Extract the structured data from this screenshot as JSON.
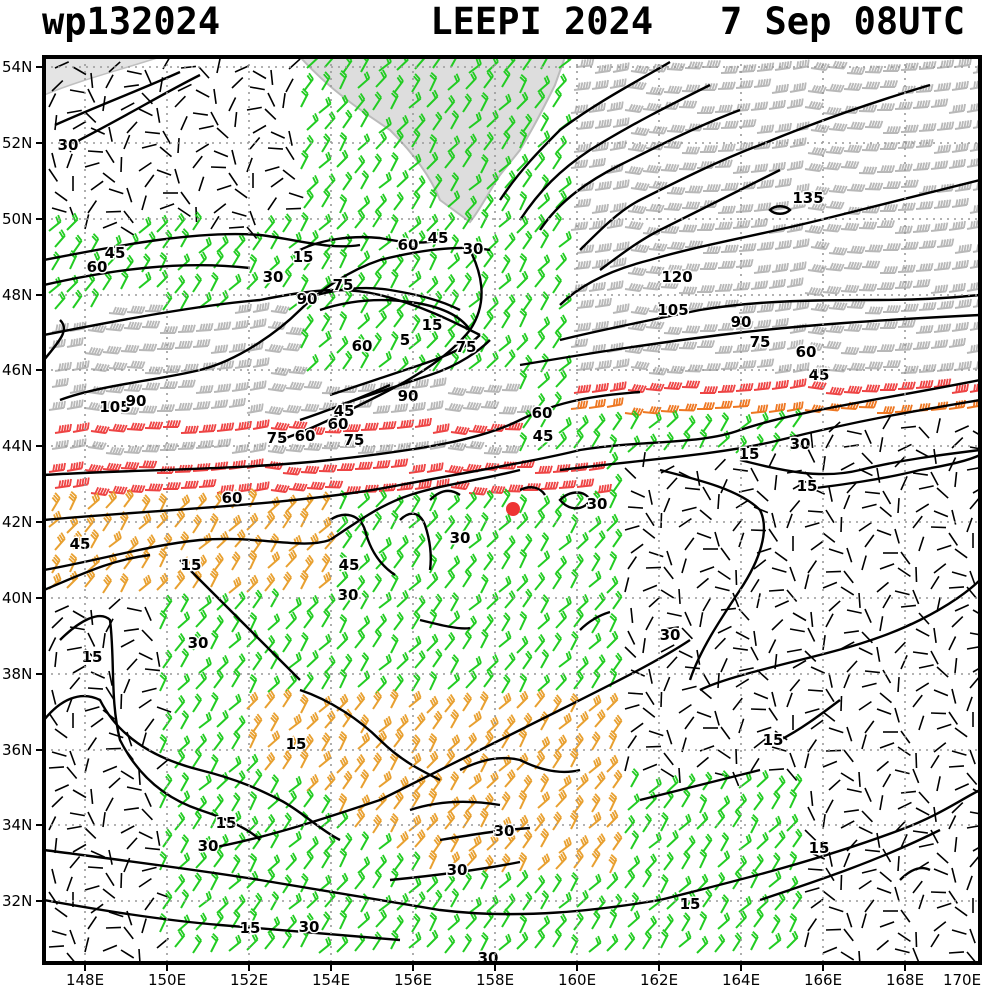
{
  "header": {
    "storm_id": "wp132024",
    "storm_info": "LEEPI 2024   7 Sep 08UTC"
  },
  "axes": {
    "lat_labels": [
      "54N",
      "52N",
      "50N",
      "48N",
      "46N",
      "44N",
      "42N",
      "40N",
      "38N",
      "36N",
      "34N",
      "32N"
    ],
    "lon_labels": [
      "148E",
      "150E",
      "152E",
      "154E",
      "156E",
      "158E",
      "160E",
      "162E",
      "164E",
      "166E",
      "168E",
      "170E"
    ]
  },
  "legend_colors": {
    "calm": "#000000",
    "15kt": "#22cc22",
    "30kt": "#e8a030",
    "45kt": "#ee7722",
    "60kt": "#ee4444",
    "75kt_plus": "#b8b8b8"
  },
  "contour_values": [
    "15",
    "30",
    "45",
    "60",
    "75",
    "90",
    "105",
    "120",
    "135"
  ],
  "contour_labels": [
    {
      "text": "30"
    },
    {
      "text": "45"
    },
    {
      "text": "60"
    },
    {
      "text": "15"
    },
    {
      "text": "60"
    },
    {
      "text": "45"
    },
    {
      "text": "30"
    },
    {
      "text": "30"
    },
    {
      "text": "75"
    },
    {
      "text": "90"
    },
    {
      "text": "15"
    },
    {
      "text": "60"
    },
    {
      "text": "75"
    },
    {
      "text": "5"
    },
    {
      "text": "90"
    },
    {
      "text": "45"
    },
    {
      "text": "60"
    },
    {
      "text": "75"
    },
    {
      "text": "105"
    },
    {
      "text": "90"
    },
    {
      "text": "75"
    },
    {
      "text": "60"
    },
    {
      "text": "135"
    },
    {
      "text": "120"
    },
    {
      "text": "105"
    },
    {
      "text": "90"
    },
    {
      "text": "75"
    },
    {
      "text": "60"
    },
    {
      "text": "45"
    },
    {
      "text": "60"
    },
    {
      "text": "45"
    },
    {
      "text": "30"
    },
    {
      "text": "15"
    },
    {
      "text": "15"
    },
    {
      "text": "60"
    },
    {
      "text": "45"
    },
    {
      "text": "30"
    },
    {
      "text": "30"
    },
    {
      "text": "15"
    },
    {
      "text": "45"
    },
    {
      "text": "30"
    },
    {
      "text": "30"
    },
    {
      "text": "15"
    },
    {
      "text": "30"
    },
    {
      "text": "15"
    },
    {
      "text": "15"
    },
    {
      "text": "15"
    },
    {
      "text": "30"
    },
    {
      "text": "30"
    },
    {
      "text": "30"
    },
    {
      "text": "15"
    },
    {
      "text": "15"
    },
    {
      "text": "15"
    },
    {
      "text": "30"
    },
    {
      "text": "30"
    }
  ],
  "storm_marker": {
    "color": "#ee3333"
  }
}
